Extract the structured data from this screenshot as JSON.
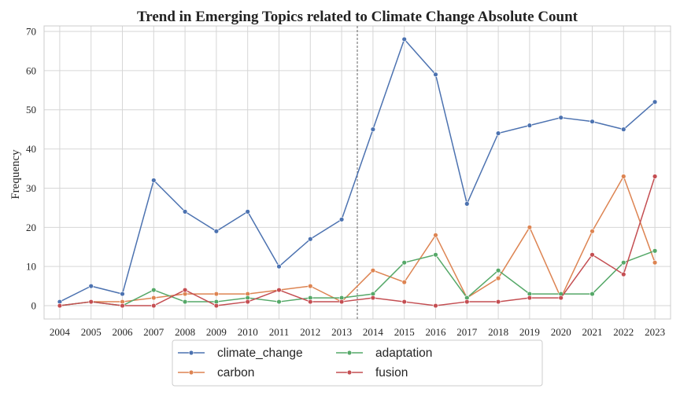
{
  "chart_data": {
    "type": "line",
    "title": "Trend in Emerging Topics related to Climate Change  Absolute Count",
    "xlabel": "",
    "ylabel": "Frequency",
    "x": [
      2004,
      2005,
      2006,
      2007,
      2008,
      2009,
      2010,
      2011,
      2012,
      2013,
      2014,
      2015,
      2016,
      2017,
      2018,
      2019,
      2020,
      2021,
      2022,
      2023
    ],
    "x_tick_labels": [
      "2004",
      "2005",
      "2006",
      "2007",
      "2008",
      "2009",
      "2010",
      "2011",
      "2012",
      "2013",
      "2014",
      "2015",
      "2016",
      "2017",
      "2018",
      "2019",
      "2020",
      "2021",
      "2022",
      "2023"
    ],
    "y_ticks": [
      0,
      10,
      20,
      30,
      40,
      50,
      60,
      70
    ],
    "y_tick_labels": [
      "0",
      "10",
      "20",
      "30",
      "40",
      "50",
      "60",
      "70"
    ],
    "ylim": [
      -3.4,
      71.4
    ],
    "xlim": [
      2003.5,
      2023.5
    ],
    "grid": true,
    "reference_line": {
      "x": 2013.5,
      "style": "dashed"
    },
    "legend_position": "bottom-center",
    "series": [
      {
        "name": "climate_change",
        "color": "#4c72b0",
        "values": [
          1,
          5,
          3,
          32,
          24,
          19,
          24,
          10,
          17,
          22,
          45,
          68,
          59,
          26,
          44,
          46,
          48,
          47,
          45,
          52
        ]
      },
      {
        "name": "carbon",
        "color": "#dd8452",
        "values": [
          0,
          1,
          1,
          2,
          3,
          3,
          3,
          4,
          5,
          1,
          9,
          6,
          18,
          2,
          7,
          20,
          2,
          19,
          33,
          11
        ]
      },
      {
        "name": "adaptation",
        "color": "#55a868",
        "values": [
          0,
          1,
          0,
          4,
          1,
          1,
          2,
          1,
          2,
          2,
          3,
          11,
          13,
          2,
          9,
          3,
          3,
          3,
          11,
          14
        ]
      },
      {
        "name": "fusion",
        "color": "#c44e52",
        "values": [
          0,
          1,
          0,
          0,
          4,
          0,
          1,
          4,
          1,
          1,
          2,
          1,
          0,
          1,
          1,
          2,
          2,
          13,
          8,
          33
        ]
      }
    ]
  }
}
